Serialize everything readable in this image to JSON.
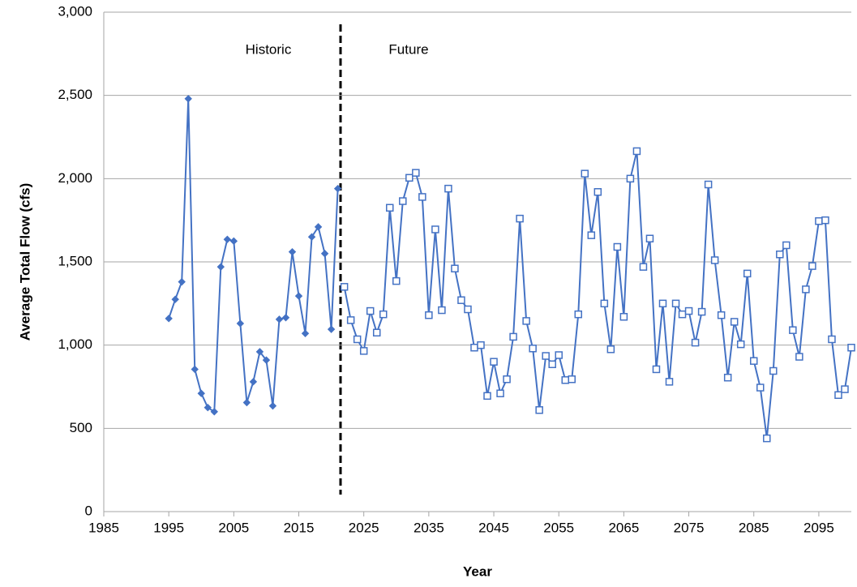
{
  "chart_data": {
    "type": "line",
    "x_label": "Year",
    "y_label": "Average Total Flow (cfs)",
    "annotations": [
      "Historic",
      "Future"
    ],
    "xlim": [
      1985,
      2100
    ],
    "xticks": [
      1985,
      1995,
      2005,
      2015,
      2025,
      2035,
      2045,
      2055,
      2065,
      2075,
      2085,
      2095
    ],
    "ylim": [
      0,
      3000
    ],
    "yticks": [
      0,
      {
        "value": 500,
        "label": "500"
      },
      {
        "value": 1000,
        "label": "1,000"
      },
      {
        "value": 1500,
        "label": "1,500"
      },
      {
        "value": 2000,
        "label": "2,000"
      },
      {
        "value": 2500,
        "label": "2,500"
      },
      {
        "value": 3000,
        "label": "3,000"
      }
    ],
    "grid": true,
    "series": [
      {
        "color": "#4472c4",
        "marker": "diamond",
        "x": [
          1995,
          1996,
          1997,
          1998,
          1999,
          2000,
          2001,
          2002,
          2003,
          2004,
          2005,
          2006,
          2007,
          2008,
          2009,
          2010,
          2011,
          2012,
          2013,
          2014,
          2015,
          2016,
          2017,
          2018,
          2019,
          2020,
          2021
        ],
        "values": [
          1160,
          1275,
          1380,
          2480,
          855,
          710,
          625,
          600,
          1470,
          1635,
          1625,
          1130,
          655,
          780,
          960,
          910,
          635,
          1155,
          1165,
          1560,
          1295,
          1070,
          1650,
          1710,
          1550,
          1095,
          1940
        ]
      },
      {
        "color": "#4472c4",
        "marker": "square-open",
        "x": [
          2022,
          2023,
          2024,
          2025,
          2026,
          2027,
          2028,
          2029,
          2030,
          2031,
          2032,
          2033,
          2034,
          2035,
          2036,
          2037,
          2038,
          2039,
          2040,
          2041,
          2042,
          2043,
          2044,
          2045,
          2046,
          2047,
          2048,
          2049,
          2050,
          2051,
          2052,
          2053,
          2054,
          2055,
          2056,
          2057,
          2058,
          2059,
          2060,
          2061,
          2062,
          2063,
          2064,
          2065,
          2066,
          2067,
          2068,
          2069,
          2070,
          2071,
          2072,
          2073,
          2074,
          2075,
          2076,
          2077,
          2078,
          2079,
          2080,
          2081,
          2082,
          2083,
          2084,
          2085,
          2086,
          2087,
          2088,
          2089,
          2090,
          2091,
          2092,
          2093,
          2094,
          2095,
          2096,
          2097,
          2098,
          2099,
          2100
        ],
        "values": [
          1350,
          1150,
          1035,
          965,
          1205,
          1075,
          1185,
          1825,
          1385,
          1865,
          2005,
          2035,
          1890,
          1180,
          1695,
          1210,
          1940,
          1460,
          1270,
          1215,
          985,
          1000,
          695,
          900,
          710,
          795,
          1050,
          1760,
          1145,
          980,
          610,
          935,
          885,
          940,
          790,
          795,
          1185,
          2030,
          1660,
          1920,
          1250,
          975,
          1590,
          1170,
          2000,
          2165,
          1470,
          1640,
          855,
          1250,
          780,
          1250,
          1185,
          1205,
          1015,
          1200,
          1965,
          1510,
          1180,
          805,
          1140,
          1005,
          1430,
          905,
          745,
          440,
          845,
          1545,
          1600,
          1090,
          930,
          1335,
          1475,
          1745,
          1750,
          1035,
          700,
          735,
          985
        ]
      }
    ]
  }
}
